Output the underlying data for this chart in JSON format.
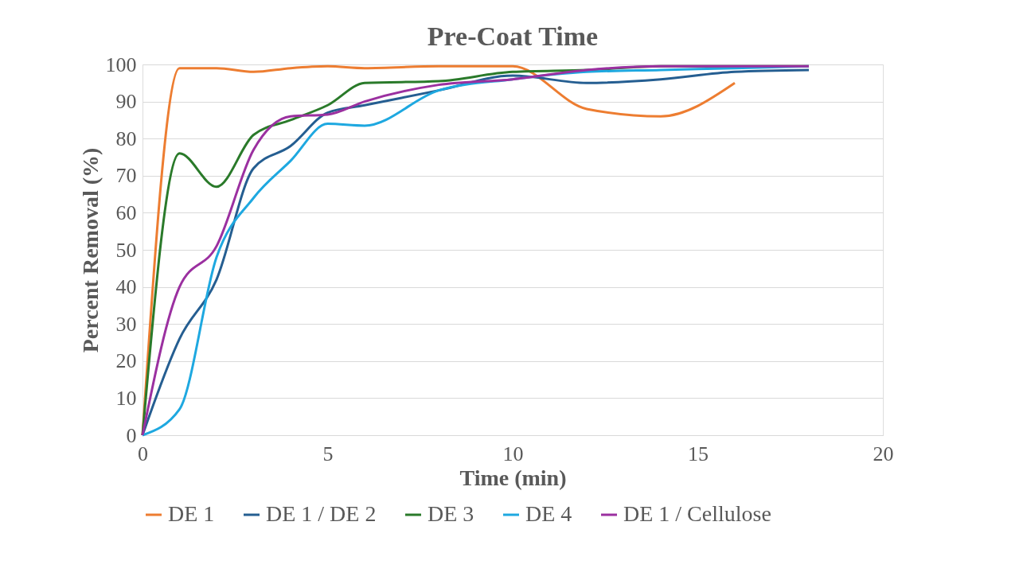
{
  "chart_data": {
    "type": "line",
    "title": "Pre-Coat Time",
    "xlabel": "Time (min)",
    "ylabel": "Percent Removal (%)",
    "x": [
      0,
      1,
      2,
      3,
      4,
      5,
      6,
      8,
      10,
      12,
      14,
      16,
      18
    ],
    "series": [
      {
        "name": "DE 1",
        "color": "#ed7d31",
        "values": [
          0,
          99,
          99,
          98,
          99,
          99.5,
          99,
          99.5,
          99.5,
          88,
          86,
          95,
          null
        ]
      },
      {
        "name": "DE 1 / DE 2",
        "color": "#255e91",
        "values": [
          0,
          26,
          42,
          72,
          78,
          87,
          89,
          93,
          97,
          95,
          96,
          98,
          98.5
        ]
      },
      {
        "name": "DE 3",
        "color": "#2a7a2a",
        "values": [
          0,
          76,
          67,
          81,
          85,
          89,
          95,
          95.5,
          98,
          98.5,
          99.5,
          99.5,
          99.5
        ]
      },
      {
        "name": "DE 4",
        "color": "#1ea8e0",
        "values": [
          0,
          7,
          48,
          64,
          74,
          84,
          83.5,
          93,
          96,
          98,
          98.5,
          99,
          99.5
        ]
      },
      {
        "name": "DE 1 / Cellulose",
        "color": "#9b30a0",
        "values": [
          0,
          40,
          51,
          77,
          86,
          86.5,
          90,
          94.5,
          96,
          98.5,
          99.5,
          99.5,
          99.5
        ]
      }
    ],
    "xlim": [
      0,
      20
    ],
    "xticks": [
      0,
      5,
      10,
      15,
      20
    ],
    "ylim": [
      0,
      100
    ],
    "yticks": [
      0,
      10,
      20,
      30,
      40,
      50,
      60,
      70,
      80,
      90,
      100
    ],
    "grid": "y",
    "legend": "bottom",
    "marker": "none",
    "line_style": "solid"
  }
}
